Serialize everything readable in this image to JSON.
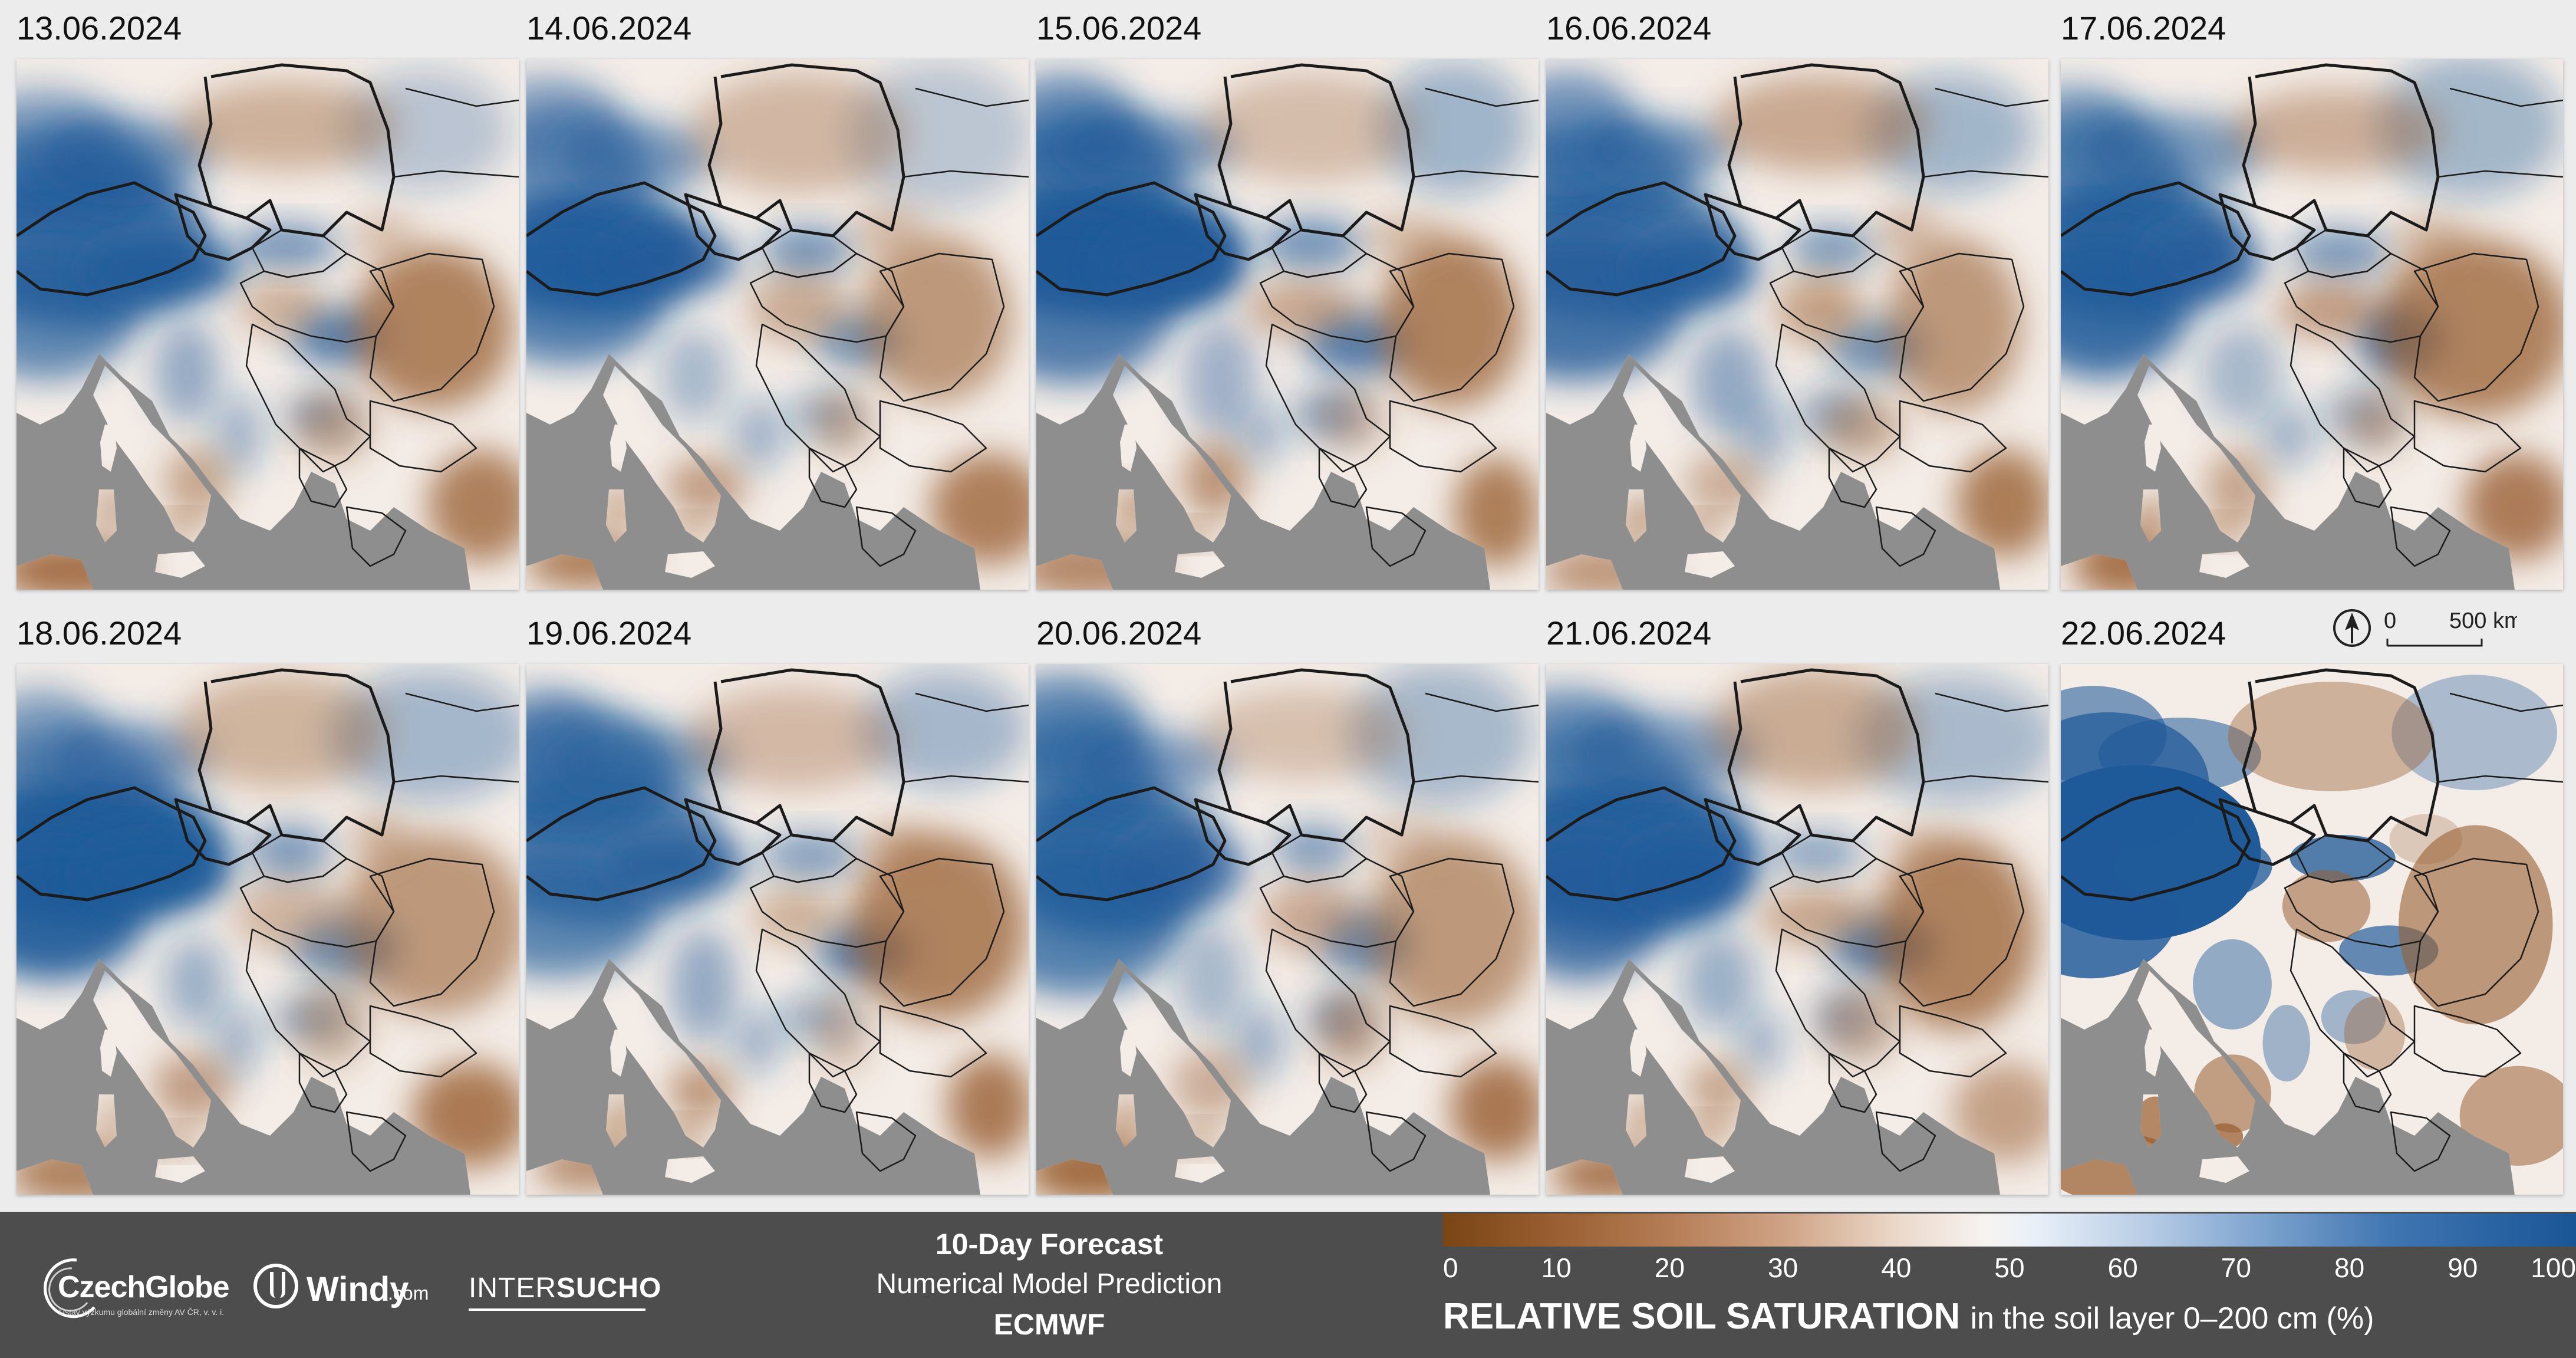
{
  "panels": [
    {
      "date": "13.06.2024",
      "variant": 0
    },
    {
      "date": "14.06.2024",
      "variant": 1
    },
    {
      "date": "15.06.2024",
      "variant": 2
    },
    {
      "date": "16.06.2024",
      "variant": 3
    },
    {
      "date": "17.06.2024",
      "variant": 4
    },
    {
      "date": "18.06.2024",
      "variant": 5
    },
    {
      "date": "19.06.2024",
      "variant": 6
    },
    {
      "date": "20.06.2024",
      "variant": 7
    },
    {
      "date": "21.06.2024",
      "variant": 8
    },
    {
      "date": "22.06.2024",
      "variant": 9
    }
  ],
  "scale": {
    "start": "0",
    "end": "500 km"
  },
  "footer": {
    "logos": {
      "czechglobe": "CzechGlobe",
      "czechglobe_sub": "Ústav výzkumu globální změny AV ČR, v. v. i.",
      "windy": "Windy",
      "windy_suffix": ".com",
      "intersucho_a": "INTER",
      "intersucho_b": "SUCHO"
    },
    "forecast_title": "10-Day Forecast",
    "forecast_subtitle": "Numerical Model Prediction",
    "forecast_model": "ECMWF"
  },
  "legend": {
    "ticks": [
      "0",
      "10",
      "20",
      "30",
      "40",
      "50",
      "60",
      "70",
      "80",
      "90",
      "100"
    ],
    "title_strong": "RELATIVE SOIL SATURATION",
    "title_rest": "in the soil layer 0–200 cm (%)",
    "colors": {
      "dry": "#7a4414",
      "neutral": "#f7f3f1",
      "wet": "#1a5596",
      "sea": "#8e8e8e",
      "footer": "#4d4d4d"
    }
  }
}
